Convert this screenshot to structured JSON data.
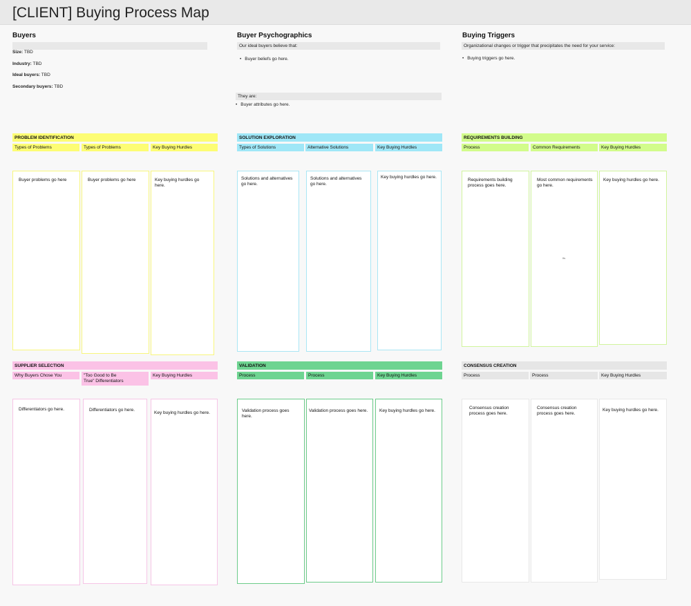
{
  "title": "[CLIENT] Buying Process Map",
  "buyers": {
    "heading": "Buyers",
    "size_label": "Size:",
    "size_value": " TBD",
    "industry_label": "Industry:",
    "industry_value": " TBD",
    "ideal_label": "Ideal buyers:",
    "ideal_value": " TBD",
    "secondary_label": "Secondary buyers:",
    "secondary_value": " TBD"
  },
  "psychographics": {
    "heading": "Buyer Psychographics",
    "believe_label": "Our ideal buyers believe that:",
    "beliefs": "Buyer beliefs go here.",
    "they_are_label": "They are:",
    "attributes": "Buyer attributes go here."
  },
  "triggers": {
    "heading": "Buying Triggers",
    "intro": "Organizational changes or trigger that precipitates the need for your service:",
    "item": "Buying triggers go here."
  },
  "problem": {
    "title": "PROBLEM IDENTIFICATION",
    "col1": "Types of Problems",
    "col2": "Types of Problems",
    "col3": "Key Buying Hurdles",
    "card1": "Buyer problems go here",
    "card2": "Buyer problems go here",
    "card3": "Key buying hurdles go here."
  },
  "solution": {
    "title": "SOLUTION EXPLORATION",
    "col1": "Types of Solutions",
    "col2": "Alternative Solutions",
    "col3": "Key Buying Hurdles",
    "card1": "Solutions and alternatives go here.",
    "card2": "Solutions and alternatives go here.",
    "card3": "Key buying hurdles go here."
  },
  "requirements": {
    "title": "REQUIREMENTS BUILDING",
    "col1": "Process",
    "col2": "Common Requirements",
    "col3": "Key Buying Hurdles",
    "card1": "Requirements building process goes here.",
    "card2": "Most common requirements go here.",
    "card3": "Key buying hurdles go here.",
    "stray": "Ifs"
  },
  "supplier": {
    "title": "SUPPLIER SELECTION",
    "col1": "Why Buyers Chose You",
    "col2": "\"Too Good to Be True\" Differentiators",
    "col3": "Key Buying Hurdles",
    "card1": "Differentiators go here.",
    "card2": "Differentiators go here.",
    "card3": "Key buying hurdles go here."
  },
  "validation": {
    "title": "VALIDATION",
    "col1": "Process",
    "col2": "Process",
    "col3": "Key Buying Hurdles",
    "card1": "Validation process goes here.",
    "card2": "Validation process goes here.",
    "card3": "Key buying hurdles go here."
  },
  "consensus": {
    "title": "CONSENSUS CREATION",
    "col1": "Process",
    "col2": "Process",
    "col3": "Key Buying Hurdles",
    "card1": "Consensus creation process goes here.",
    "card2": "Consensus creation process goes here.",
    "card3": "Key buying hurdles go here."
  },
  "colors": {
    "yellow": "#fdfd74",
    "blue": "#9fe7f7",
    "lime": "#d2fc8b",
    "pink": "#fbc2e6",
    "green": "#6ed491",
    "grey": "#e6e6e6"
  }
}
